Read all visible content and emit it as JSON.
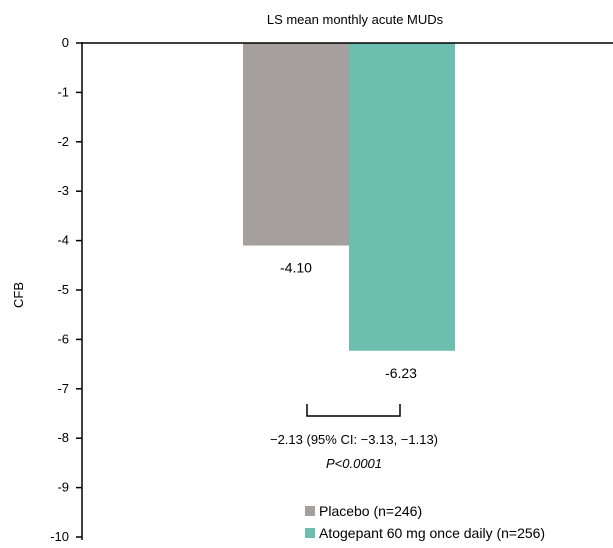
{
  "chart_data": {
    "type": "bar",
    "title": "LS mean monthly acute MUDs",
    "xlabel": "",
    "ylabel": "CFB",
    "ylim": [
      -10,
      0
    ],
    "yticks": [
      0,
      -1,
      -2,
      -3,
      -4,
      -5,
      -6,
      -7,
      -8,
      -9,
      -10
    ],
    "grid": false,
    "legend_position": "bottom-right",
    "series": [
      {
        "name": "Placebo (n=246)",
        "value": -4.1,
        "label": "-4.10",
        "color": "#a5a09f"
      },
      {
        "name": "Atogepant 60 mg once daily (n=256)",
        "value": -6.23,
        "label": "-6.23",
        "color": "#6cbeae"
      }
    ],
    "annotation": {
      "difference": "−2.13 (95% CI: −3.13, −1.13)",
      "pvalue": "P<0.0001"
    }
  }
}
